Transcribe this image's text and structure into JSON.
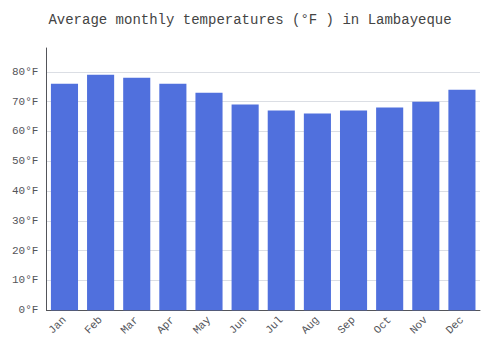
{
  "chart_data": {
    "type": "bar",
    "title": "Average monthly temperatures (°F ) in Lambayeque",
    "categories": [
      "Jan",
      "Feb",
      "Mar",
      "Apr",
      "May",
      "Jun",
      "Jul",
      "Aug",
      "Sep",
      "Oct",
      "Nov",
      "Dec"
    ],
    "values": [
      76.0,
      79.0,
      78.0,
      76.0,
      73.0,
      69.0,
      67.0,
      66.0,
      67.0,
      68.0,
      70.0,
      74.0
    ],
    "ylim": [
      0,
      88
    ],
    "yticks": [
      {
        "value": 0,
        "label": "0°F"
      },
      {
        "value": 10,
        "label": "10°F"
      },
      {
        "value": 20,
        "label": "20°F"
      },
      {
        "value": 30,
        "label": "30°F"
      },
      {
        "value": 40,
        "label": "40°F"
      },
      {
        "value": 50,
        "label": "50°F"
      },
      {
        "value": 60,
        "label": "60°F"
      },
      {
        "value": 70,
        "label": "70°F"
      },
      {
        "value": 80,
        "label": "80°F"
      }
    ],
    "grid": true
  }
}
